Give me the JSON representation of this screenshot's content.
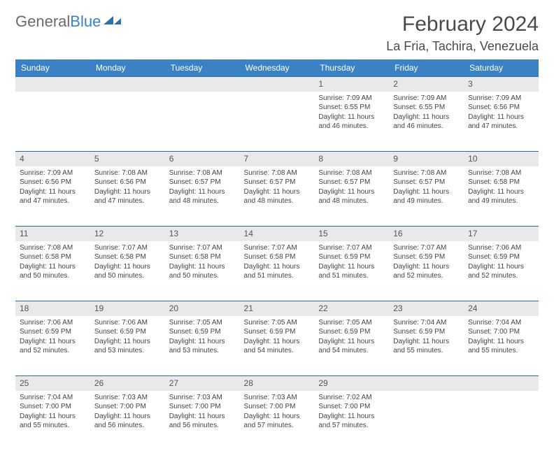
{
  "brand": {
    "name_part1": "General",
    "name_part2": "Blue"
  },
  "title": "February 2024",
  "location": "La Fria, Tachira, Venezuela",
  "colors": {
    "header_bg": "#3b82c4",
    "header_text": "#ffffff",
    "daynum_bg": "#e9e9e9",
    "row_border": "#2b6aa0",
    "text": "#444444",
    "title_text": "#4a4a4a"
  },
  "weekdays": [
    "Sunday",
    "Monday",
    "Tuesday",
    "Wednesday",
    "Thursday",
    "Friday",
    "Saturday"
  ],
  "weeks": [
    [
      null,
      null,
      null,
      null,
      {
        "d": "1",
        "sr": "7:09 AM",
        "ss": "6:55 PM",
        "dl": "11 hours and 46 minutes."
      },
      {
        "d": "2",
        "sr": "7:09 AM",
        "ss": "6:55 PM",
        "dl": "11 hours and 46 minutes."
      },
      {
        "d": "3",
        "sr": "7:09 AM",
        "ss": "6:56 PM",
        "dl": "11 hours and 47 minutes."
      }
    ],
    [
      {
        "d": "4",
        "sr": "7:09 AM",
        "ss": "6:56 PM",
        "dl": "11 hours and 47 minutes."
      },
      {
        "d": "5",
        "sr": "7:08 AM",
        "ss": "6:56 PM",
        "dl": "11 hours and 47 minutes."
      },
      {
        "d": "6",
        "sr": "7:08 AM",
        "ss": "6:57 PM",
        "dl": "11 hours and 48 minutes."
      },
      {
        "d": "7",
        "sr": "7:08 AM",
        "ss": "6:57 PM",
        "dl": "11 hours and 48 minutes."
      },
      {
        "d": "8",
        "sr": "7:08 AM",
        "ss": "6:57 PM",
        "dl": "11 hours and 48 minutes."
      },
      {
        "d": "9",
        "sr": "7:08 AM",
        "ss": "6:57 PM",
        "dl": "11 hours and 49 minutes."
      },
      {
        "d": "10",
        "sr": "7:08 AM",
        "ss": "6:58 PM",
        "dl": "11 hours and 49 minutes."
      }
    ],
    [
      {
        "d": "11",
        "sr": "7:08 AM",
        "ss": "6:58 PM",
        "dl": "11 hours and 50 minutes."
      },
      {
        "d": "12",
        "sr": "7:07 AM",
        "ss": "6:58 PM",
        "dl": "11 hours and 50 minutes."
      },
      {
        "d": "13",
        "sr": "7:07 AM",
        "ss": "6:58 PM",
        "dl": "11 hours and 50 minutes."
      },
      {
        "d": "14",
        "sr": "7:07 AM",
        "ss": "6:58 PM",
        "dl": "11 hours and 51 minutes."
      },
      {
        "d": "15",
        "sr": "7:07 AM",
        "ss": "6:59 PM",
        "dl": "11 hours and 51 minutes."
      },
      {
        "d": "16",
        "sr": "7:07 AM",
        "ss": "6:59 PM",
        "dl": "11 hours and 52 minutes."
      },
      {
        "d": "17",
        "sr": "7:06 AM",
        "ss": "6:59 PM",
        "dl": "11 hours and 52 minutes."
      }
    ],
    [
      {
        "d": "18",
        "sr": "7:06 AM",
        "ss": "6:59 PM",
        "dl": "11 hours and 52 minutes."
      },
      {
        "d": "19",
        "sr": "7:06 AM",
        "ss": "6:59 PM",
        "dl": "11 hours and 53 minutes."
      },
      {
        "d": "20",
        "sr": "7:05 AM",
        "ss": "6:59 PM",
        "dl": "11 hours and 53 minutes."
      },
      {
        "d": "21",
        "sr": "7:05 AM",
        "ss": "6:59 PM",
        "dl": "11 hours and 54 minutes."
      },
      {
        "d": "22",
        "sr": "7:05 AM",
        "ss": "6:59 PM",
        "dl": "11 hours and 54 minutes."
      },
      {
        "d": "23",
        "sr": "7:04 AM",
        "ss": "6:59 PM",
        "dl": "11 hours and 55 minutes."
      },
      {
        "d": "24",
        "sr": "7:04 AM",
        "ss": "7:00 PM",
        "dl": "11 hours and 55 minutes."
      }
    ],
    [
      {
        "d": "25",
        "sr": "7:04 AM",
        "ss": "7:00 PM",
        "dl": "11 hours and 55 minutes."
      },
      {
        "d": "26",
        "sr": "7:03 AM",
        "ss": "7:00 PM",
        "dl": "11 hours and 56 minutes."
      },
      {
        "d": "27",
        "sr": "7:03 AM",
        "ss": "7:00 PM",
        "dl": "11 hours and 56 minutes."
      },
      {
        "d": "28",
        "sr": "7:03 AM",
        "ss": "7:00 PM",
        "dl": "11 hours and 57 minutes."
      },
      {
        "d": "29",
        "sr": "7:02 AM",
        "ss": "7:00 PM",
        "dl": "11 hours and 57 minutes."
      },
      null,
      null
    ]
  ],
  "labels": {
    "sunrise": "Sunrise:",
    "sunset": "Sunset:",
    "daylight": "Daylight:"
  }
}
